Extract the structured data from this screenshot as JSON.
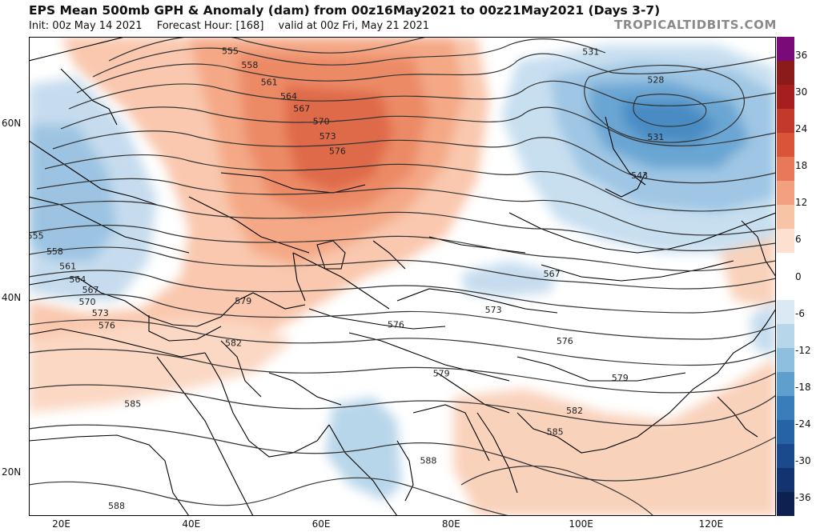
{
  "header": {
    "title": "EPS Mean 500mb GPH & Anomaly (dam) from 00z16May2021 to 00z21May2021 (Days 3-7)",
    "init": "Init: 00z May 14 2021",
    "forecast_hour": "Forecast Hour: [168]",
    "valid": "valid at 00z Fri, May 21 2021",
    "brand": "TROPICALTIDBITS.COM"
  },
  "map": {
    "lon_range": [
      15,
      130
    ],
    "lat_range": [
      15,
      70
    ],
    "lat_labels": [
      {
        "lat": 60,
        "text": "60N"
      },
      {
        "lat": 40,
        "text": "40N"
      },
      {
        "lat": 20,
        "text": "20N"
      }
    ],
    "lon_labels": [
      {
        "lon": 20,
        "text": "20E"
      },
      {
        "lon": 40,
        "text": "40E"
      },
      {
        "lon": 60,
        "text": "60E"
      },
      {
        "lon": 80,
        "text": "80E"
      },
      {
        "lon": 100,
        "text": "100E"
      },
      {
        "lon": 120,
        "text": "120E"
      }
    ],
    "contour_labels": [
      {
        "text": "555",
        "lon": 46,
        "lat": 68.4
      },
      {
        "text": "558",
        "lon": 49,
        "lat": 66.8
      },
      {
        "text": "561",
        "lon": 52,
        "lat": 64.8
      },
      {
        "text": "564",
        "lon": 55,
        "lat": 63.2
      },
      {
        "text": "567",
        "lon": 57,
        "lat": 61.8
      },
      {
        "text": "570",
        "lon": 60,
        "lat": 60.3
      },
      {
        "text": "573",
        "lon": 61,
        "lat": 58.6
      },
      {
        "text": "576",
        "lon": 62.5,
        "lat": 56.9
      },
      {
        "text": "555",
        "lon": 16,
        "lat": 47.2
      },
      {
        "text": "558",
        "lon": 19,
        "lat": 45.4
      },
      {
        "text": "561",
        "lon": 21,
        "lat": 43.7
      },
      {
        "text": "564",
        "lon": 22.5,
        "lat": 42.2
      },
      {
        "text": "567",
        "lon": 24.5,
        "lat": 41.0
      },
      {
        "text": "570",
        "lon": 24,
        "lat": 39.6
      },
      {
        "text": "573",
        "lon": 26,
        "lat": 38.3
      },
      {
        "text": "576",
        "lon": 27,
        "lat": 36.9
      },
      {
        "text": "579",
        "lon": 48,
        "lat": 39.7
      },
      {
        "text": "582",
        "lon": 46.5,
        "lat": 34.9
      },
      {
        "text": "585",
        "lon": 31,
        "lat": 27.9
      },
      {
        "text": "588",
        "lon": 28.5,
        "lat": 16.2
      },
      {
        "text": "576",
        "lon": 71.5,
        "lat": 37.0
      },
      {
        "text": "579",
        "lon": 78.5,
        "lat": 31.4
      },
      {
        "text": "573",
        "lon": 86.5,
        "lat": 38.7
      },
      {
        "text": "576",
        "lon": 97.5,
        "lat": 35.1
      },
      {
        "text": "579",
        "lon": 106,
        "lat": 30.9
      },
      {
        "text": "582",
        "lon": 99,
        "lat": 27.1
      },
      {
        "text": "585",
        "lon": 96,
        "lat": 24.7
      },
      {
        "text": "588",
        "lon": 76.5,
        "lat": 21.4
      },
      {
        "text": "567",
        "lon": 95.5,
        "lat": 42.8
      },
      {
        "text": "531",
        "lon": 101.5,
        "lat": 68.3
      },
      {
        "text": "528",
        "lon": 111.5,
        "lat": 65.1
      },
      {
        "text": "531",
        "lon": 111.5,
        "lat": 58.5
      },
      {
        "text": "543",
        "lon": 109,
        "lat": 54.1
      }
    ]
  },
  "colorbar": {
    "labels": [
      "36",
      "30",
      "24",
      "18",
      "12",
      "6",
      "0",
      "-6",
      "-12",
      "-18",
      "-24",
      "-30",
      "-36"
    ],
    "colors": [
      "#7a0a78",
      "#8b1a1a",
      "#a51f1f",
      "#c43a2a",
      "#d8553a",
      "#e8785a",
      "#f2a080",
      "#f8c4a8",
      "#fde0d0",
      "#ffffff",
      "#ffffff",
      "#dbe9f4",
      "#b8d6ea",
      "#8fbfde",
      "#5f9fcd",
      "#3a7dbb",
      "#2563a6",
      "#1b4a8c",
      "#133370",
      "#0d2050"
    ]
  }
}
